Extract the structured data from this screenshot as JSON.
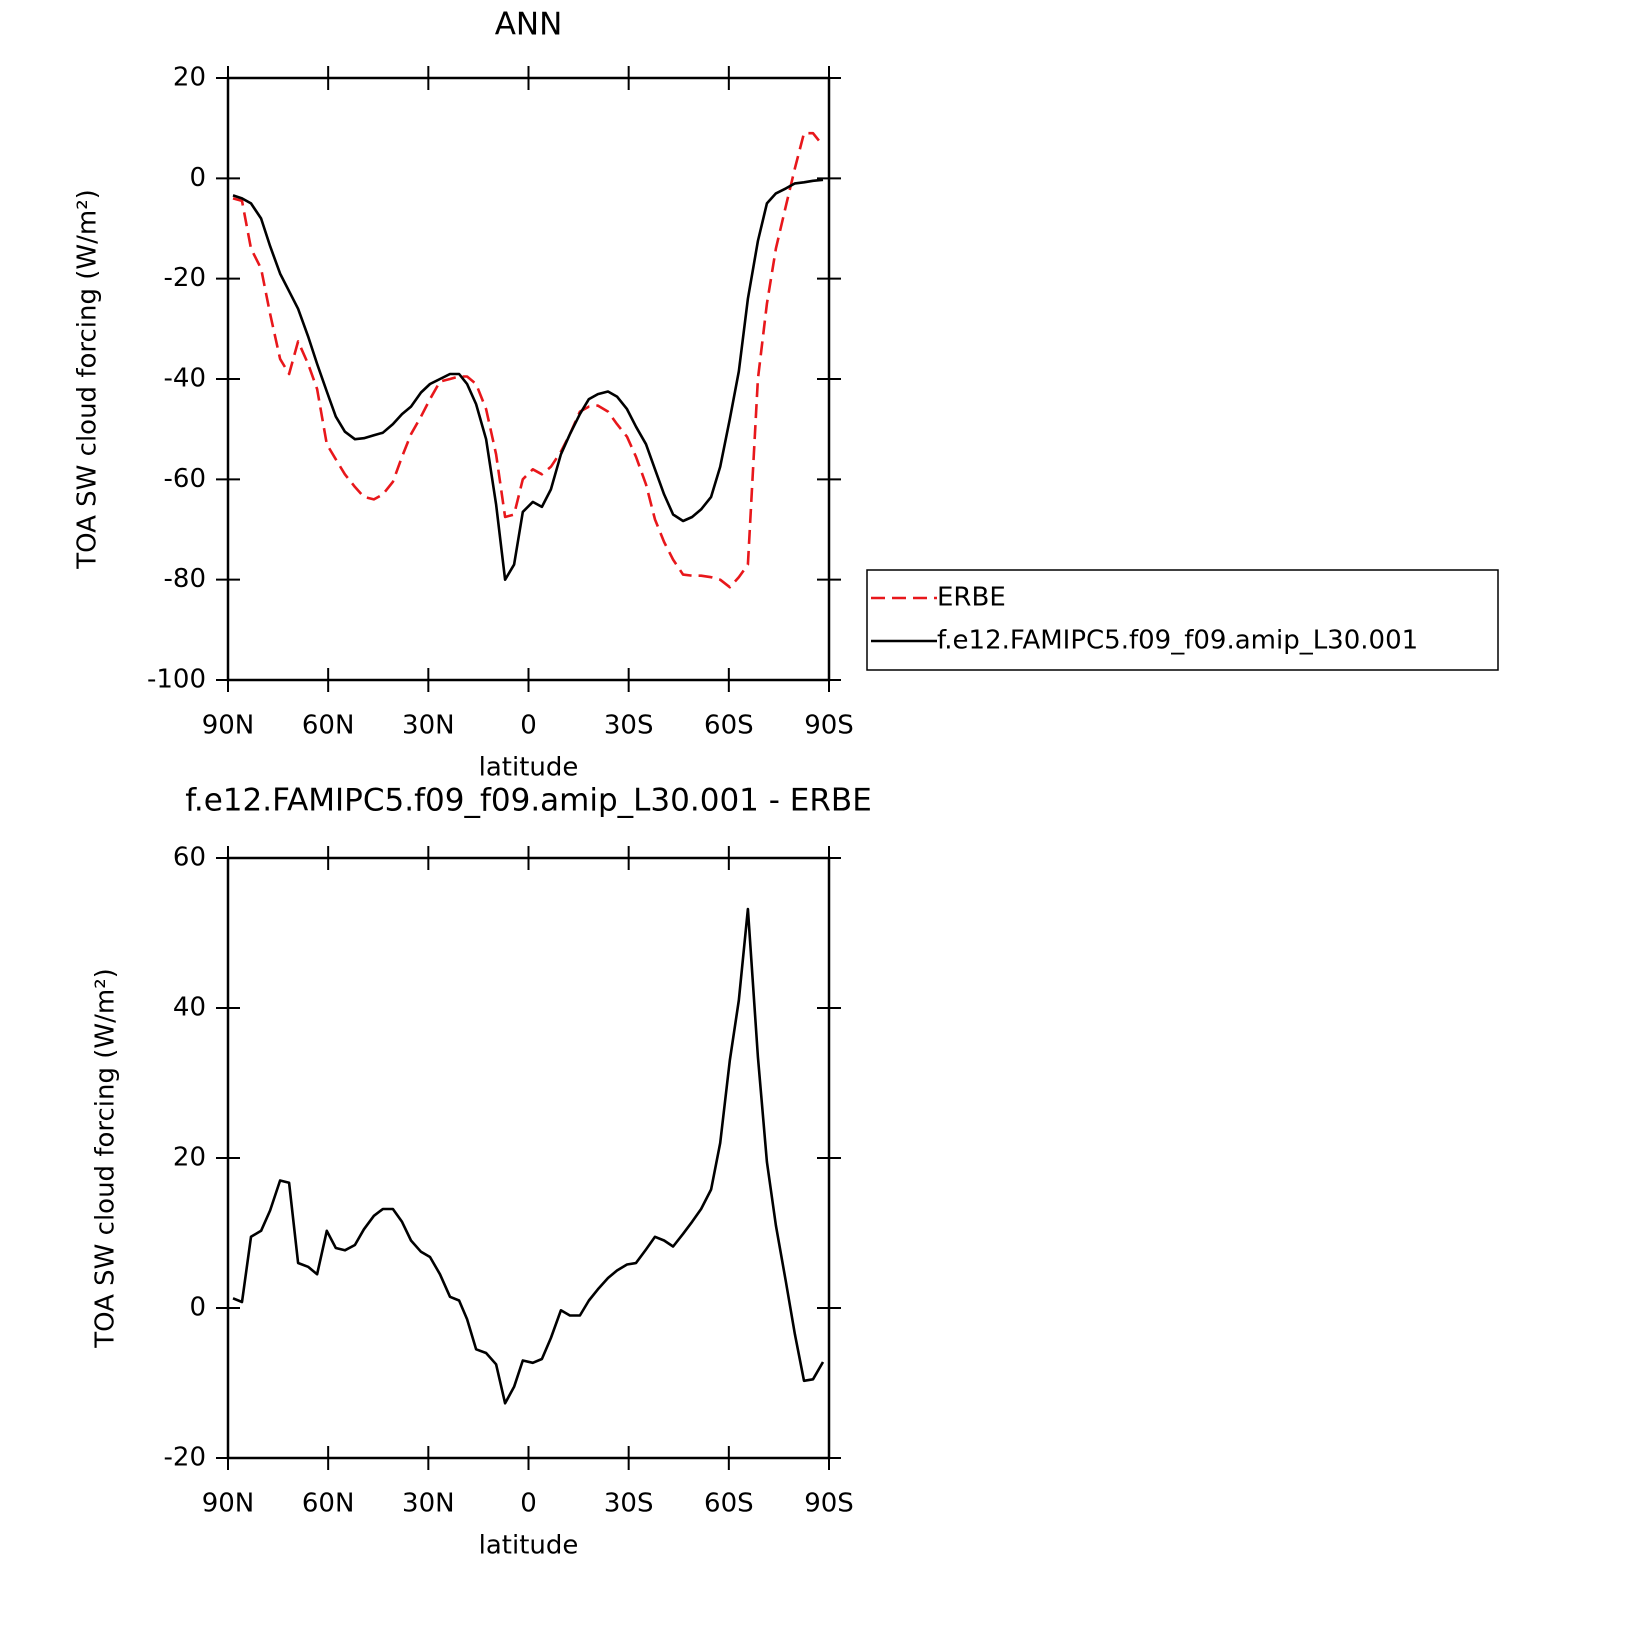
{
  "chart_data": [
    {
      "type": "line",
      "title": "ANN",
      "xlabel": "latitude",
      "ylabel": "TOA SW cloud forcing (W/m²)",
      "x": [
        88.5,
        85.8,
        83.1,
        80.1,
        77.4,
        74.4,
        71.7,
        69.0,
        66.0,
        63.3,
        60.4,
        57.7,
        55.0,
        52.0,
        49.3,
        46.3,
        43.6,
        40.6,
        37.9,
        35.2,
        32.2,
        29.5,
        26.5,
        23.5,
        20.8,
        18.4,
        15.7,
        12.7,
        9.7,
        7.0,
        4.3,
        1.7,
        -1.3,
        -4.0,
        -6.7,
        -9.7,
        -12.4,
        -15.4,
        -18.1,
        -20.8,
        -23.8,
        -26.5,
        -29.5,
        -32.2,
        -35.2,
        -37.9,
        -40.6,
        -43.3,
        -46.3,
        -49.0,
        -51.7,
        -54.7,
        -57.4,
        -60.3,
        -63.0,
        -65.7,
        -68.7,
        -71.4,
        -74.1,
        -77.1,
        -79.8,
        -82.5,
        -85.2,
        -88.2
      ],
      "series": [
        {
          "name": "ERBE",
          "color": "#e8171b",
          "style": "dashed",
          "values": [
            -4,
            -4.5,
            -14,
            -18,
            -27,
            -36,
            -39,
            -32.5,
            -37,
            -42,
            -53,
            -56,
            -59,
            -61.5,
            -63.5,
            -64,
            -63,
            -60.5,
            -55.5,
            -51,
            -47.5,
            -44,
            -40.5,
            -40,
            -39.5,
            -39.5,
            -41,
            -46,
            -55,
            -67.5,
            -67,
            -60,
            -58,
            -59,
            -57.5,
            -54.5,
            -51,
            -46.5,
            -45.5,
            -45.3,
            -46.5,
            -49,
            -51.5,
            -55.5,
            -61,
            -68,
            -72.5,
            -76,
            -79,
            -79.2,
            -79.2,
            -79.5,
            -80,
            -81.5,
            -79.5,
            -77,
            -40,
            -25,
            -14,
            -5.5,
            2,
            9,
            9,
            6.5
          ]
        },
        {
          "name": "f.e12.FAMIPC5.f09_f09.amip_L30.001",
          "color": "#000000",
          "style": "solid",
          "values": [
            -3.4,
            -4,
            -5,
            -8,
            -13.5,
            -19,
            -22.5,
            -26,
            -31.5,
            -37,
            -42.5,
            -47.5,
            -50.5,
            -52,
            -51.8,
            -51.2,
            -50.7,
            -49,
            -47,
            -45.5,
            -42.7,
            -41,
            -40,
            -39,
            -39,
            -41,
            -45,
            -52,
            -65,
            -80,
            -77,
            -66.5,
            -64.5,
            -65.5,
            -62,
            -55,
            -51,
            -47,
            -44,
            -43,
            -42.5,
            -43.5,
            -46,
            -49.5,
            -53,
            -58,
            -63,
            -67,
            -68.3,
            -67.5,
            -66,
            -63.5,
            -57.5,
            -48,
            -38.5,
            -24,
            -12.5,
            -5,
            -3,
            -2,
            -1,
            -0.8,
            -0.5,
            -0.3
          ]
        }
      ],
      "xlim": [
        90,
        -90
      ],
      "xticks": [
        {
          "value": 90,
          "label": "90N"
        },
        {
          "value": 60,
          "label": "60N"
        },
        {
          "value": 30,
          "label": "30N"
        },
        0,
        {
          "value": -30,
          "label": "30S"
        },
        {
          "value": -60,
          "label": "60S"
        },
        {
          "value": -90,
          "label": "90S"
        }
      ],
      "ylim": [
        -100,
        20
      ],
      "yticks": [
        -100,
        -80,
        -60,
        -40,
        -20,
        0,
        20
      ],
      "legend": "right"
    },
    {
      "type": "line",
      "title": "f.e12.FAMIPC5.f09_f09.amip_L30.001 - ERBE",
      "xlabel": "latitude",
      "ylabel": "TOA SW cloud forcing (W/m²)",
      "x": [
        88.5,
        85.8,
        83.1,
        80.1,
        77.4,
        74.4,
        71.7,
        69.0,
        66.0,
        63.3,
        60.4,
        57.7,
        55.0,
        52.0,
        49.3,
        46.3,
        43.6,
        40.6,
        37.9,
        35.2,
        32.2,
        29.5,
        26.5,
        23.5,
        20.8,
        18.4,
        15.7,
        12.7,
        9.7,
        7.0,
        4.3,
        1.7,
        -1.3,
        -4.0,
        -6.7,
        -9.7,
        -12.4,
        -15.4,
        -18.1,
        -20.8,
        -23.8,
        -26.5,
        -29.5,
        -32.2,
        -35.2,
        -37.9,
        -40.6,
        -43.3,
        -46.3,
        -49.0,
        -51.7,
        -54.7,
        -57.4,
        -60.3,
        -63.0,
        -65.7,
        -68.7,
        -71.4,
        -74.1,
        -77.1,
        -79.8,
        -82.5,
        -85.2,
        -88.2
      ],
      "series": [
        {
          "color": "#000000",
          "style": "solid",
          "values": [
            1.3,
            0.8,
            9.5,
            10.3,
            13,
            17,
            16.7,
            6,
            5.5,
            4.5,
            10.3,
            8,
            7.7,
            8.4,
            10.5,
            12.3,
            13.2,
            13.2,
            11.5,
            9,
            7.5,
            6.8,
            4.5,
            1.5,
            1,
            -1.5,
            -5.5,
            -6,
            -7.5,
            -12.7,
            -10.5,
            -7,
            -7.3,
            -6.8,
            -4,
            -0.3,
            -1,
            -1,
            1,
            2.5,
            4,
            5,
            5.8,
            6,
            7.8,
            9.5,
            9,
            8.2,
            9.9,
            11.5,
            13.2,
            15.8,
            22,
            33,
            41,
            53.2,
            33.5,
            19.5,
            11,
            3.5,
            -3.5,
            -9.7,
            -9.5,
            -7.2
          ]
        }
      ],
      "xlim": [
        90,
        -90
      ],
      "xticks": [
        {
          "value": 90,
          "label": "90N"
        },
        {
          "value": 60,
          "label": "60N"
        },
        {
          "value": 30,
          "label": "30N"
        },
        0,
        {
          "value": -30,
          "label": "30S"
        },
        {
          "value": -60,
          "label": "60S"
        },
        {
          "value": -90,
          "label": "90S"
        }
      ],
      "ylim": [
        -20,
        60
      ],
      "yticks": [
        -20,
        0,
        20,
        40,
        60
      ]
    }
  ]
}
